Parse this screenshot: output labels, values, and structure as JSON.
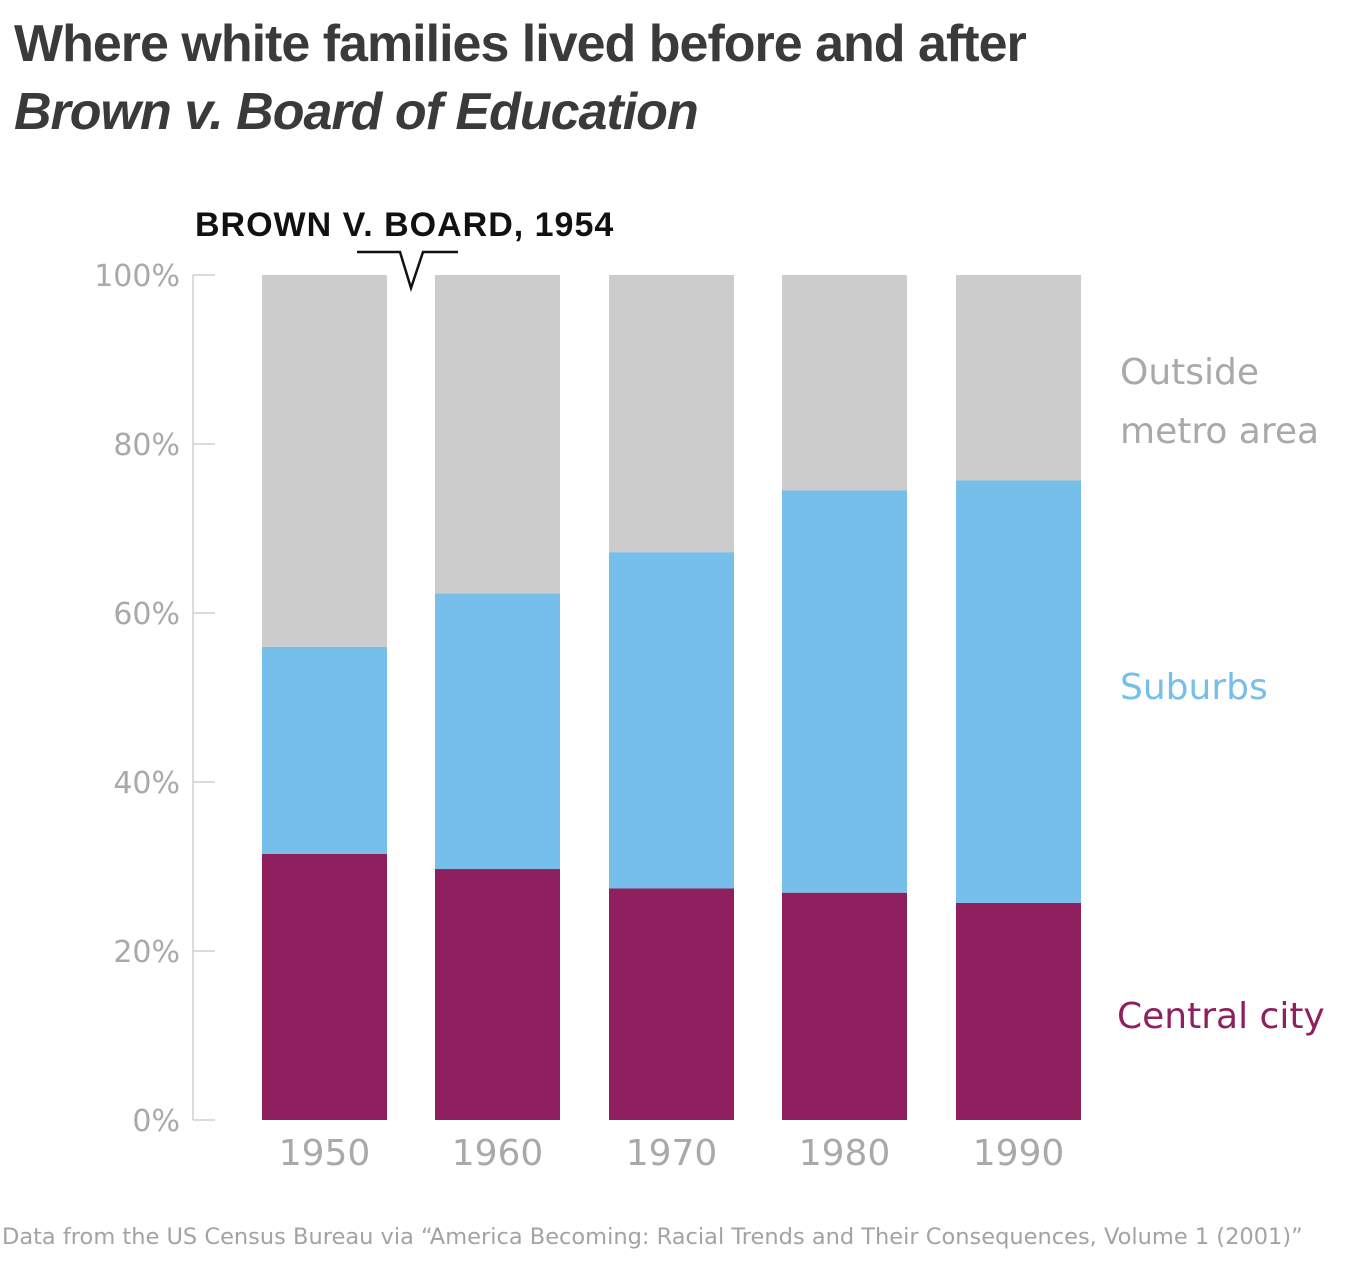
{
  "title": {
    "line1": "Where white families lived before and after",
    "line2": "Brown v. Board of Education"
  },
  "source": "Data from the US Census Bureau via “America Becoming: Racial Trends and Their Consequences, Volume 1 (2001)”",
  "colors": {
    "central_city": "#8f1f5f",
    "suburbs": "#76bfea",
    "outside_metro": "#cccccc",
    "axis": "#cfcfcf",
    "tick_text": "#a9a9a9"
  },
  "chart_data": {
    "type": "bar",
    "stacked": true,
    "categories": [
      "1950",
      "1960",
      "1970",
      "1980",
      "1990"
    ],
    "series": [
      {
        "name": "Central city",
        "values": [
          31.5,
          29.7,
          27.4,
          26.9,
          25.7
        ]
      },
      {
        "name": "Suburbs",
        "values": [
          24.5,
          32.6,
          39.8,
          47.6,
          50.0
        ]
      },
      {
        "name": "Outside metro area",
        "values": [
          44.0,
          37.7,
          32.8,
          25.5,
          24.3
        ]
      }
    ],
    "ylim": [
      0,
      100
    ],
    "yticks": [
      "0%",
      "20%",
      "40%",
      "60%",
      "80%",
      "100%"
    ],
    "grid": false,
    "legend": "right, labels beside the last bar",
    "legend_labels": {
      "outside_line1": "Outside",
      "outside_line2": "metro area",
      "suburbs": "Suburbs",
      "central": "Central city"
    },
    "annotation": {
      "label": "BROWN V. BOARD, 1954",
      "year": 1954
    }
  }
}
